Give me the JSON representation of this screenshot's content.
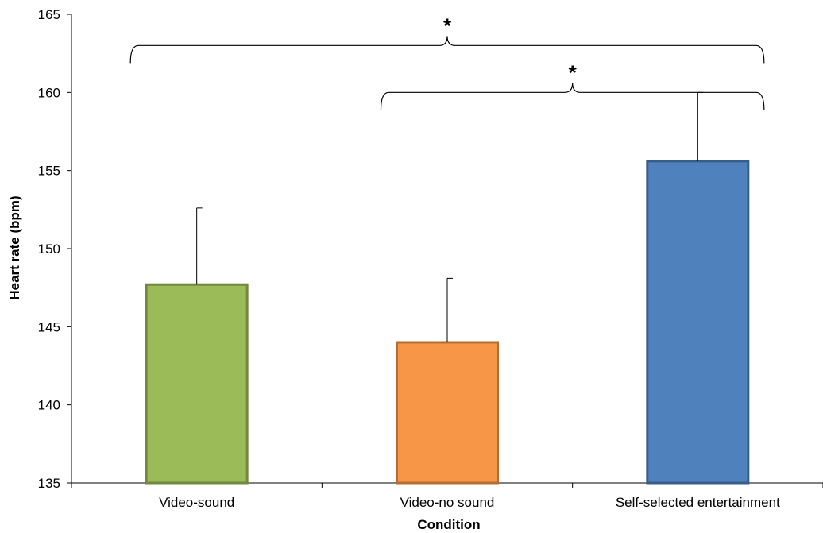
{
  "chart_data": {
    "type": "bar",
    "title": "",
    "xlabel": "Condition",
    "ylabel": "Heart rate (bpm)",
    "ylim": [
      135,
      165
    ],
    "yticks": [
      135,
      140,
      145,
      150,
      155,
      160,
      165
    ],
    "grid": false,
    "categories": [
      "Video-sound",
      "Video-no sound",
      "Self-selected entertainment"
    ],
    "values": [
      147.7,
      144.0,
      155.6
    ],
    "error_upper": [
      152.6,
      148.1,
      160.0
    ],
    "bar_colors": [
      "#9BBB59",
      "#F79646",
      "#4F81BD"
    ],
    "bar_edge_colors": [
      "#71893F",
      "#B66D31",
      "#385D8A"
    ],
    "annotations": [
      {
        "label": "*",
        "from_category": 0,
        "to_category": 2,
        "y": 163.0
      },
      {
        "label": "*",
        "from_category": 1,
        "to_category": 2,
        "y": 160.0
      }
    ]
  }
}
